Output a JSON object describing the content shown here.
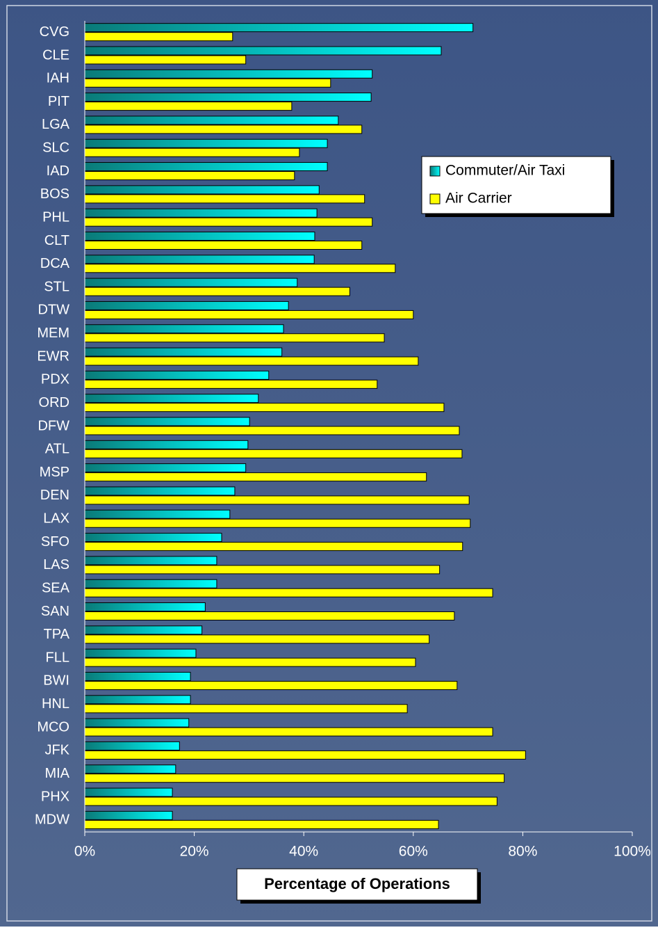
{
  "chart_data": {
    "type": "bar",
    "orientation": "horizontal",
    "xlabel": "Percentage of Operations",
    "categories": [
      "CVG",
      "CLE",
      "IAH",
      "PIT",
      "LGA",
      "SLC",
      "IAD",
      "BOS",
      "PHL",
      "CLT",
      "DCA",
      "STL",
      "DTW",
      "MEM",
      "EWR",
      "PDX",
      "ORD",
      "DFW",
      "ATL",
      "MSP",
      "DEN",
      "LAX",
      "SFO",
      "LAS",
      "SEA",
      "SAN",
      "TPA",
      "FLL",
      "BWI",
      "HNL",
      "MCO",
      "JFK",
      "MIA",
      "PHX",
      "MDW"
    ],
    "series": [
      {
        "name": "Commuter/Air Taxi",
        "color": "#00ffff",
        "values": [
          70.9,
          65.1,
          52.5,
          52.3,
          46.3,
          44.3,
          44.3,
          42.8,
          42.4,
          42.0,
          41.9,
          38.8,
          37.2,
          36.3,
          36.0,
          33.6,
          31.7,
          30.1,
          29.8,
          29.4,
          27.4,
          26.5,
          25.0,
          24.1,
          24.1,
          22.0,
          21.4,
          20.3,
          19.3,
          19.3,
          19.0,
          17.3,
          16.6,
          16.0,
          16.0
        ]
      },
      {
        "name": "Air Carrier",
        "color": "#ffff00",
        "values": [
          27.0,
          29.4,
          44.9,
          37.8,
          50.6,
          39.2,
          38.3,
          51.1,
          52.5,
          50.6,
          56.7,
          48.4,
          60.0,
          54.7,
          60.9,
          53.4,
          65.6,
          68.4,
          68.9,
          62.4,
          70.2,
          70.4,
          69.0,
          64.8,
          74.5,
          67.5,
          62.9,
          60.4,
          68.0,
          58.9,
          74.5,
          80.5,
          76.6,
          75.3,
          64.6
        ]
      }
    ],
    "xlim": [
      0,
      100
    ],
    "xticks": [
      {
        "value": 0,
        "label": "0%"
      },
      {
        "value": 20,
        "label": "20%"
      },
      {
        "value": 40,
        "label": "40%"
      },
      {
        "value": 60,
        "label": "60%"
      },
      {
        "value": 80,
        "label": "80%"
      },
      {
        "value": 100,
        "label": "100%"
      }
    ],
    "grid": false
  }
}
